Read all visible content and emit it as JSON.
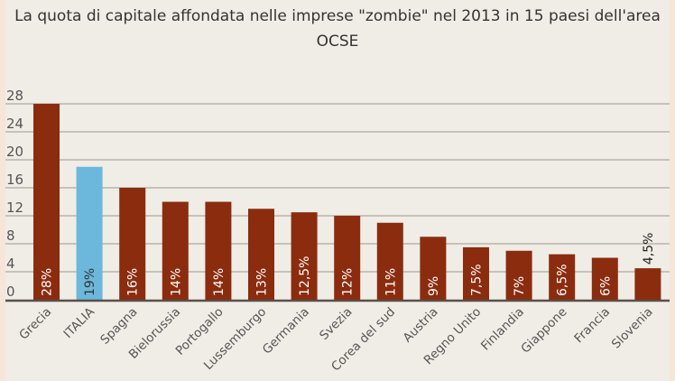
{
  "chart_data": {
    "type": "bar",
    "title": "La quota di capitale affondata nelle imprese \"zombie\" nel 2013 in 15 paesi dell'area OCSE",
    "categories": [
      "Grecia",
      "ITALIA",
      "Spagna",
      "Bielorussia",
      "Portogallo",
      "Lussemburgo",
      "Germania",
      "Svezia",
      "Corea del sud",
      "Austria",
      "Regno Unito",
      "Finlandia",
      "Giappone",
      "Francia",
      "Slovenia"
    ],
    "values": [
      28,
      19,
      16,
      14,
      14,
      13,
      12.5,
      12,
      11,
      9,
      7.5,
      7,
      6.5,
      6,
      4.5
    ],
    "data_labels": [
      "28%",
      "19%",
      "16%",
      "14%",
      "14%",
      "13%",
      "12,5%",
      "12%",
      "11%",
      "9%",
      "7,5%",
      "7%",
      "6,5%",
      "6%",
      "4,5%"
    ],
    "highlight": "ITALIA",
    "ylim": [
      0,
      28
    ],
    "yticks": [
      0,
      4,
      8,
      12,
      16,
      20,
      24,
      28
    ],
    "grid": true,
    "colors": {
      "bar": "#8b2c0f",
      "highlight": "#6bb8dc",
      "grid": "#b8b3aa"
    }
  }
}
